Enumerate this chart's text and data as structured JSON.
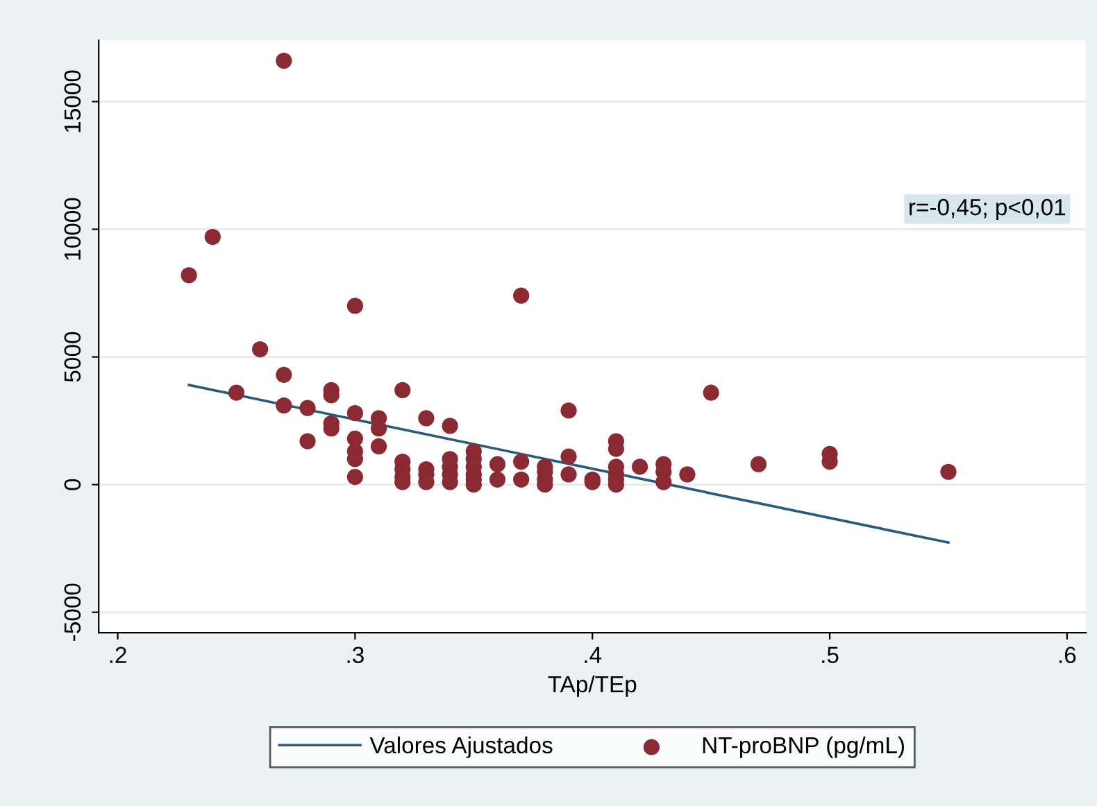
{
  "chart_data": {
    "type": "scatter",
    "xlabel": "TAp/TEp",
    "xlim": [
      0.192,
      0.608
    ],
    "xticks": [
      {
        "value": 0.2,
        "label": ".2"
      },
      {
        "value": 0.3,
        "label": ".3"
      },
      {
        "value": 0.4,
        "label": ".4"
      },
      {
        "value": 0.5,
        "label": ".5"
      },
      {
        "value": 0.6,
        "label": ".6"
      }
    ],
    "ylim": [
      -5800,
      17400
    ],
    "yticks": [
      -5000,
      0,
      5000,
      10000,
      15000
    ],
    "grid": "y",
    "legend": "bottom",
    "marker": "circle",
    "annotations": [
      "r=-0,45; p<0,01"
    ],
    "series": [
      {
        "name": "Valores Ajustados",
        "type": "line",
        "color": "#2b5a80",
        "marker": "none",
        "line_style": "solid",
        "x": [
          0.23,
          0.55
        ],
        "values": [
          3900,
          -2270
        ]
      },
      {
        "name": "NT-proBNP (pg/mL)",
        "color": "#8b2a33",
        "x": [
          0.23,
          0.24,
          0.27,
          0.25,
          0.26,
          0.27,
          0.27,
          0.28,
          0.28,
          0.29,
          0.29,
          0.29,
          0.29,
          0.3,
          0.3,
          0.3,
          0.3,
          0.3,
          0.3,
          0.31,
          0.31,
          0.31,
          0.32,
          0.32,
          0.32,
          0.32,
          0.32,
          0.33,
          0.33,
          0.33,
          0.33,
          0.34,
          0.34,
          0.34,
          0.34,
          0.34,
          0.35,
          0.35,
          0.35,
          0.35,
          0.35,
          0.35,
          0.36,
          0.36,
          0.37,
          0.37,
          0.37,
          0.38,
          0.38,
          0.38,
          0.38,
          0.39,
          0.39,
          0.39,
          0.4,
          0.4,
          0.41,
          0.41,
          0.41,
          0.41,
          0.41,
          0.41,
          0.42,
          0.43,
          0.43,
          0.43,
          0.44,
          0.45,
          0.47,
          0.5,
          0.5,
          0.55
        ],
        "values": [
          8200,
          9700,
          16600,
          3600,
          5300,
          4300,
          3100,
          3000,
          1700,
          3700,
          3500,
          2400,
          2200,
          7000,
          2800,
          1800,
          1300,
          1000,
          300,
          2600,
          2200,
          1500,
          3700,
          900,
          600,
          300,
          100,
          2600,
          600,
          400,
          100,
          2300,
          1000,
          700,
          400,
          100,
          1300,
          1000,
          700,
          400,
          200,
          0,
          800,
          200,
          7400,
          900,
          200,
          700,
          500,
          200,
          0,
          2900,
          1100,
          400,
          200,
          100,
          1700,
          1400,
          700,
          400,
          200,
          0,
          700,
          800,
          500,
          100,
          400,
          3600,
          800,
          1200,
          900,
          500
        ]
      }
    ]
  }
}
